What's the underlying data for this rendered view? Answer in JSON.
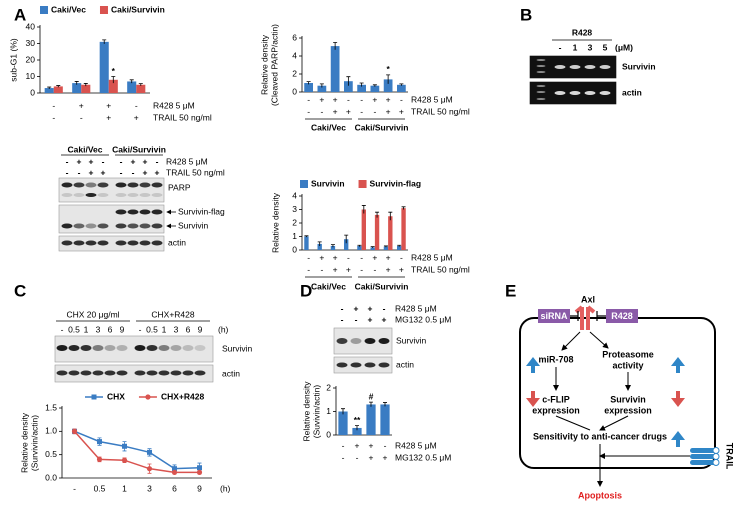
{
  "panel_labels": [
    "A",
    "B",
    "C",
    "D",
    "E"
  ],
  "chart_data": [
    {
      "type": "bar",
      "ylabel": [
        "sub-G1 (%)"
      ],
      "ylim": [
        0,
        40
      ],
      "yticks": [
        0,
        10,
        20,
        30,
        40
      ],
      "series": [
        {
          "name": "Caki/Vec",
          "color": "#3a7cc3",
          "values": [
            3,
            6,
            31,
            7
          ],
          "errors": [
            0.6,
            1,
            1.2,
            1
          ]
        },
        {
          "name": "Caki/Survivin",
          "color": "#d9534f",
          "values": [
            4,
            5,
            8,
            5
          ],
          "errors": [
            0.5,
            0.8,
            2,
            0.7
          ],
          "annotations": [
            null,
            null,
            "*",
            null
          ]
        }
      ],
      "conditions": [
        {
          "label": "R428 5 μM",
          "marks": [
            "-",
            "+",
            "+",
            "-"
          ]
        },
        {
          "label": "TRAIL 50 ng/ml",
          "marks": [
            "-",
            "-",
            "+",
            "+"
          ]
        }
      ]
    },
    {
      "type": "bar",
      "ylabel": [
        "Relative density",
        "(Cleaved PARP/actin)"
      ],
      "ylim": [
        0,
        6
      ],
      "yticks": [
        0,
        2,
        4,
        6
      ],
      "series": [
        {
          "color": "#3a7cc3",
          "values": [
            1,
            0.7,
            5.1,
            1.2,
            0.8,
            0.7,
            1.4,
            0.8
          ],
          "errors": [
            0.15,
            0.2,
            0.4,
            0.5,
            0.2,
            0.1,
            0.5,
            0.1
          ],
          "annotations": [
            null,
            null,
            null,
            null,
            null,
            null,
            "*",
            null
          ]
        }
      ],
      "conditions": [
        {
          "label": "R428 5 μM",
          "marks": [
            "-",
            "+",
            "+",
            "-",
            "-",
            "+",
            "+",
            "-"
          ]
        },
        {
          "label": "TRAIL 50 ng/ml",
          "marks": [
            "-",
            "-",
            "+",
            "+",
            "-",
            "-",
            "+",
            "+"
          ]
        }
      ],
      "groups": [
        "Caki/Vec",
        "Caki/Survivin"
      ]
    },
    {
      "type": "bar",
      "ylabel": [
        "Relative density"
      ],
      "ylim": [
        0,
        4
      ],
      "yticks": [
        0,
        1,
        2,
        3,
        4
      ],
      "series": [
        {
          "name": "Survivin",
          "color": "#3a7cc3",
          "values": [
            1,
            0.45,
            0.3,
            0.8,
            0.3,
            0.2,
            0.25,
            0.3
          ],
          "errors": [
            0.05,
            0.15,
            0.1,
            0.3,
            0.05,
            0.05,
            0.05,
            0.05
          ]
        },
        {
          "name": "Survivin-flag",
          "color": "#d9534f",
          "values": [
            0,
            0,
            0,
            0,
            3.0,
            2.6,
            2.5,
            3.1
          ],
          "errors": [
            0,
            0,
            0,
            0,
            0.3,
            0.2,
            0.3,
            0.1
          ]
        }
      ],
      "conditions": [
        {
          "label": "R428 5 μM",
          "marks": [
            "-",
            "+",
            "+",
            "-",
            "-",
            "+",
            "+",
            "-"
          ]
        },
        {
          "label": "TRAIL 50 ng/ml",
          "marks": [
            "-",
            "-",
            "+",
            "+",
            "-",
            "-",
            "+",
            "+"
          ]
        }
      ],
      "groups": [
        "Caki/Vec",
        "Caki/Survivin"
      ]
    },
    {
      "type": "line",
      "ylabel": [
        "Relative density",
        "(Survivin/actin)"
      ],
      "xlabel": "(h)",
      "categories": [
        "-",
        "0.5",
        "1",
        "3",
        "6",
        "9"
      ],
      "ylim": [
        0,
        1.5
      ],
      "yticks": [
        {
          "value": 0,
          "label": "0.0"
        },
        0.5,
        {
          "value": 1,
          "label": "1.0"
        },
        1.5
      ],
      "series": [
        {
          "name": "CHX",
          "color": "#3a7cc3",
          "values": [
            1,
            0.78,
            0.68,
            0.55,
            0.2,
            0.22
          ],
          "errors": [
            0.05,
            0.08,
            0.1,
            0.08,
            0.08,
            0.1
          ]
        },
        {
          "name": "CHX+R428",
          "color": "#d9534f",
          "values": [
            1,
            0.4,
            0.38,
            0.2,
            0.12,
            0.12
          ],
          "errors": [
            0.05,
            0.05,
            0.05,
            0.1,
            0.03,
            0.03
          ]
        }
      ]
    },
    {
      "type": "bar",
      "ylabel": [
        "Relative density",
        "(Suvivin/actin)"
      ],
      "ylim": [
        0,
        2
      ],
      "yticks": [
        0,
        1,
        2
      ],
      "series": [
        {
          "color": "#3a7cc3",
          "values": [
            1,
            0.3,
            1.3,
            1.3
          ],
          "errors": [
            0.12,
            0.1,
            0.1,
            0.08
          ],
          "annotations": [
            null,
            "**",
            "#",
            null
          ]
        }
      ],
      "conditions": [
        {
          "label": "R428 5 μM",
          "marks": [
            "-",
            "+",
            "+",
            "-"
          ]
        },
        {
          "label": "MG132 0.5 μM",
          "marks": [
            "-",
            "-",
            "+",
            "+"
          ]
        }
      ]
    }
  ],
  "blots": [
    {
      "groups": [
        "Caki/Vec",
        "Caki/Survivin"
      ],
      "conditions": [
        {
          "label": "R428 5 μM",
          "marks": [
            "-",
            "+",
            "+",
            "-",
            "-",
            "+",
            "+",
            "-"
          ]
        },
        {
          "label": "TRAIL 50 ng/ml",
          "marks": [
            "-",
            "-",
            "+",
            "+",
            "-",
            "-",
            "+",
            "+"
          ]
        }
      ],
      "bands": [
        "PARP",
        "Survivin-flag",
        "Survivin",
        "actin"
      ]
    },
    {
      "treatment": "R428",
      "marks": [
        "-",
        "1",
        "3",
        "5"
      ],
      "unit": "(μM)",
      "bands": [
        "Survivin",
        "actin"
      ]
    },
    {
      "groups": [
        "CHX 20 μg/ml",
        "CHX+R428"
      ],
      "marks": [
        "-",
        "0.5",
        "1",
        "3",
        "6",
        "9",
        "-",
        "0.5",
        "1",
        "3",
        "6",
        "9"
      ],
      "unit": "(h)",
      "bands": [
        "Survivin",
        "actin"
      ]
    },
    {
      "conditions": [
        {
          "label": "R428 5 μM",
          "marks": [
            "-",
            "+",
            "+",
            "-"
          ]
        },
        {
          "label": "MG132 0.5 μM",
          "marks": [
            "-",
            "-",
            "+",
            "+"
          ]
        }
      ],
      "bands": [
        "Survivin",
        "actin"
      ]
    }
  ],
  "diagram": {
    "receptor": "Axl",
    "inhibitors": [
      "siRNA",
      "R428"
    ],
    "left": [
      [
        "miR-708"
      ],
      [
        "c-FLIP",
        "expression"
      ]
    ],
    "right": [
      [
        "Proteasome",
        "activity"
      ],
      [
        "Survivin",
        "expression"
      ]
    ],
    "outcome": "Sensitivity to anti-cancer drugs",
    "ligand": "TRAIL",
    "result": "Apoptosis"
  }
}
